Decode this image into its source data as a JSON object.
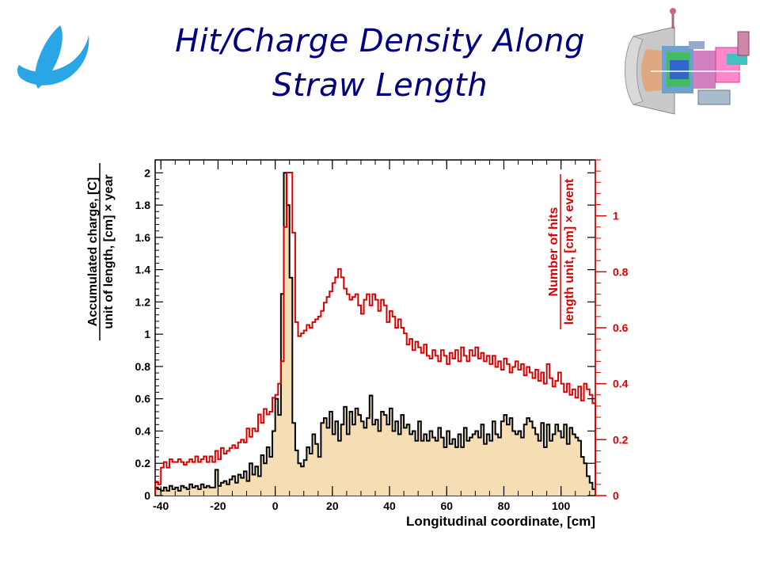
{
  "slide": {
    "title_line1": "Hit/Charge Density Along",
    "title_line2": "Straw Length"
  },
  "logo": {
    "icon": "swoosh-logo-icon",
    "color": "#29a6e6"
  },
  "detector_image": {
    "icon": "detector-cutaway-icon"
  },
  "chart_data": {
    "type": "histogram",
    "xlabel": "Longitudinal coordinate, [cm]",
    "xlim": [
      -42,
      112
    ],
    "x_ticks": [
      -40,
      -20,
      0,
      20,
      40,
      60,
      80,
      100
    ],
    "bin_width": 1,
    "left_axis": {
      "label_numerator": "Accumulated charge, [C]",
      "label_denominator": "unit of length, [cm] × year",
      "ylim": [
        0,
        2.08
      ],
      "ticks": [
        0,
        0.2,
        0.4,
        0.6,
        0.8,
        1,
        1.2,
        1.4,
        1.6,
        1.8,
        2
      ],
      "color": "#000000"
    },
    "right_axis": {
      "label_numerator": "Number of hits",
      "label_denominator": "length unit, [cm] × event",
      "ylim": [
        0,
        1.2
      ],
      "ticks": [
        0,
        0.2,
        0.4,
        0.6,
        0.8,
        1
      ],
      "color": "#dd0000"
    },
    "series": [
      {
        "name": "Accumulated charge",
        "axis": "left",
        "color": "#000000",
        "fill": "#f5deb3",
        "x_start": -42,
        "values": [
          0.05,
          0.04,
          0.03,
          0.05,
          0.03,
          0.06,
          0.04,
          0.05,
          0.03,
          0.06,
          0.05,
          0.04,
          0.07,
          0.05,
          0.06,
          0.04,
          0.07,
          0.05,
          0.06,
          0.05,
          0.05,
          0.16,
          0.06,
          0.08,
          0.09,
          0.07,
          0.1,
          0.12,
          0.08,
          0.13,
          0.11,
          0.15,
          0.09,
          0.2,
          0.13,
          0.18,
          0.12,
          0.25,
          0.2,
          0.3,
          0.24,
          0.4,
          0.6,
          0.5,
          1.25,
          2.0,
          1.8,
          1.35,
          0.45,
          0.28,
          0.2,
          0.18,
          0.22,
          0.3,
          0.26,
          0.38,
          0.32,
          0.24,
          0.45,
          0.48,
          0.42,
          0.52,
          0.38,
          0.46,
          0.34,
          0.44,
          0.55,
          0.38,
          0.52,
          0.44,
          0.54,
          0.5,
          0.46,
          0.42,
          0.48,
          0.62,
          0.44,
          0.47,
          0.4,
          0.52,
          0.5,
          0.44,
          0.54,
          0.4,
          0.46,
          0.38,
          0.5,
          0.42,
          0.44,
          0.38,
          0.4,
          0.34,
          0.46,
          0.34,
          0.38,
          0.34,
          0.4,
          0.36,
          0.34,
          0.42,
          0.36,
          0.3,
          0.4,
          0.32,
          0.35,
          0.3,
          0.38,
          0.3,
          0.42,
          0.34,
          0.36,
          0.38,
          0.4,
          0.36,
          0.44,
          0.32,
          0.38,
          0.34,
          0.46,
          0.38,
          0.36,
          0.46,
          0.5,
          0.44,
          0.48,
          0.4,
          0.38,
          0.4,
          0.36,
          0.44,
          0.48,
          0.46,
          0.42,
          0.38,
          0.34,
          0.45,
          0.3,
          0.44,
          0.34,
          0.38,
          0.44,
          0.4,
          0.36,
          0.44,
          0.32,
          0.42,
          0.38,
          0.36,
          0.34,
          0.24,
          0.2,
          0.12,
          0.08,
          0.04
        ]
      },
      {
        "name": "Number of hits",
        "axis": "right",
        "color": "#dd0000",
        "x_start": -42,
        "values": [
          0.05,
          0.04,
          0.1,
          0.12,
          0.1,
          0.13,
          0.12,
          0.12,
          0.13,
          0.12,
          0.11,
          0.12,
          0.13,
          0.12,
          0.14,
          0.12,
          0.13,
          0.14,
          0.12,
          0.14,
          0.12,
          0.16,
          0.13,
          0.17,
          0.15,
          0.16,
          0.17,
          0.18,
          0.17,
          0.19,
          0.2,
          0.19,
          0.24,
          0.21,
          0.24,
          0.23,
          0.29,
          0.26,
          0.31,
          0.29,
          0.3,
          0.35,
          0.36,
          0.4,
          0.48,
          0.96,
          1.17,
          1.16,
          0.94,
          0.62,
          0.57,
          0.58,
          0.59,
          0.61,
          0.6,
          0.62,
          0.63,
          0.64,
          0.66,
          0.69,
          0.71,
          0.73,
          0.76,
          0.78,
          0.81,
          0.78,
          0.74,
          0.72,
          0.7,
          0.71,
          0.72,
          0.68,
          0.65,
          0.7,
          0.72,
          0.68,
          0.72,
          0.7,
          0.66,
          0.7,
          0.68,
          0.62,
          0.66,
          0.64,
          0.6,
          0.63,
          0.6,
          0.58,
          0.54,
          0.56,
          0.52,
          0.55,
          0.53,
          0.51,
          0.54,
          0.5,
          0.49,
          0.52,
          0.5,
          0.48,
          0.52,
          0.5,
          0.47,
          0.51,
          0.49,
          0.52,
          0.48,
          0.53,
          0.5,
          0.48,
          0.52,
          0.5,
          0.53,
          0.49,
          0.51,
          0.48,
          0.5,
          0.47,
          0.5,
          0.46,
          0.48,
          0.45,
          0.49,
          0.47,
          0.44,
          0.46,
          0.48,
          0.45,
          0.47,
          0.43,
          0.46,
          0.44,
          0.42,
          0.45,
          0.41,
          0.44,
          0.4,
          0.47,
          0.42,
          0.39,
          0.41,
          0.44,
          0.4,
          0.37,
          0.4,
          0.36,
          0.38,
          0.35,
          0.39,
          0.34,
          0.4,
          0.38,
          0.36,
          0.33
        ]
      }
    ]
  }
}
